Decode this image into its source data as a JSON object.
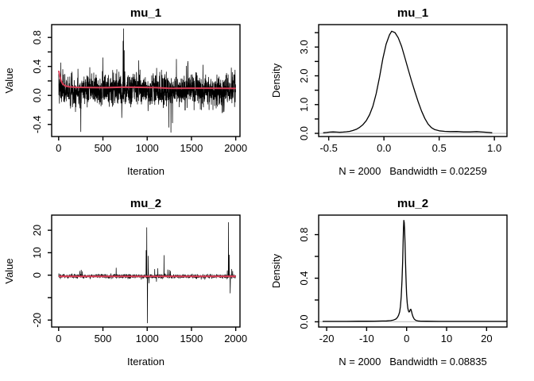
{
  "figure": {
    "background": "#ffffff",
    "colors": {
      "axis": "#000000",
      "text": "#000000",
      "trace": "#000000",
      "smoother": "#d63e56",
      "zero_line": "#c8c8c8"
    }
  },
  "chart_data": [
    {
      "id": "trace-mu1",
      "type": "line",
      "title": "mu_1",
      "xlabel": "Iteration",
      "ylabel": "Value",
      "sublabel": "",
      "usr": {
        "x": [
          -79,
          2048
        ],
        "y": [
          -0.567,
          0.977
        ]
      },
      "xticks": {
        "values": [
          0,
          500,
          1000,
          1500,
          2000
        ],
        "labels": [
          "0",
          "500",
          "1000",
          "1500",
          "2000"
        ]
      },
      "yticks": {
        "values": [
          -0.4,
          -0.2,
          0,
          0.2,
          0.4,
          0.6,
          0.8
        ],
        "labels": [
          "-0.4",
          "",
          "0.0",
          "",
          "0.4",
          "",
          "0.8"
        ]
      },
      "zero_line": false,
      "series": [
        {
          "name": "mcmc-trace-line",
          "color": "#000000",
          "width": 0.75,
          "generate": {
            "seed": 7,
            "n": 2000,
            "mean": 0.075,
            "sd": 0.095,
            "ar": 0.3,
            "clamp": [
              -0.32,
              0.45
            ],
            "spikes": [
              [
                25,
                0.45
              ],
              [
                250,
                -0.5
              ],
              [
                500,
                0.52
              ],
              [
                728,
                0.75
              ],
              [
                733,
                0.92
              ],
              [
                740,
                0.62
              ],
              [
                905,
                0.48
              ],
              [
                1245,
                -0.44
              ],
              [
                1268,
                -0.51
              ],
              [
                1286,
                -0.38
              ],
              [
                1330,
                0.5
              ],
              [
                1460,
                0.47
              ],
              [
                1630,
                0.42
              ],
              [
                1950,
                0.38
              ],
              [
                1992,
                0.35
              ]
            ]
          }
        },
        {
          "name": "smoothed-mean-line",
          "color": "#d63e56",
          "width": 2,
          "points": [
            [
              1,
              0.34
            ],
            [
              12,
              0.28
            ],
            [
              25,
              0.21
            ],
            [
              45,
              0.16
            ],
            [
              75,
              0.13
            ],
            [
              120,
              0.118
            ],
            [
              200,
              0.112
            ],
            [
              350,
              0.11
            ],
            [
              550,
              0.108
            ],
            [
              730,
              0.115
            ],
            [
              900,
              0.112
            ],
            [
              1100,
              0.108
            ],
            [
              1230,
              0.1
            ],
            [
              1320,
              0.098
            ],
            [
              1500,
              0.1
            ],
            [
              1700,
              0.1
            ],
            [
              1850,
              0.098
            ],
            [
              2000,
              0.097
            ]
          ]
        }
      ]
    },
    {
      "id": "density-mu1",
      "type": "line",
      "title": "mu_1",
      "xlabel": "",
      "ylabel": "Density",
      "sublabel": "N = 2000   Bandwidth = 0.02259",
      "usr": {
        "x": [
          -0.591,
          1.114
        ],
        "y": [
          -0.11,
          3.78
        ]
      },
      "xticks": {
        "values": [
          -0.5,
          0,
          0.5,
          1
        ],
        "labels": [
          "-0.5",
          "0.0",
          "0.5",
          "1.0"
        ]
      },
      "yticks": {
        "values": [
          0,
          0.5,
          1,
          1.5,
          2,
          2.5,
          3,
          3.5
        ],
        "labels": [
          "0.0",
          "",
          "1.0",
          "",
          "2.0",
          "",
          "3.0",
          ""
        ]
      },
      "zero_line": true,
      "series": [
        {
          "name": "density-curve",
          "color": "#000000",
          "width": 1.3,
          "points": [
            [
              -0.55,
              0.02
            ],
            [
              -0.52,
              0.03
            ],
            [
              -0.49,
              0.045
            ],
            [
              -0.46,
              0.05
            ],
            [
              -0.43,
              0.045
            ],
            [
              -0.4,
              0.04
            ],
            [
              -0.37,
              0.045
            ],
            [
              -0.34,
              0.055
            ],
            [
              -0.31,
              0.07
            ],
            [
              -0.28,
              0.1
            ],
            [
              -0.25,
              0.14
            ],
            [
              -0.22,
              0.21
            ],
            [
              -0.19,
              0.3
            ],
            [
              -0.16,
              0.44
            ],
            [
              -0.13,
              0.65
            ],
            [
              -0.1,
              0.95
            ],
            [
              -0.07,
              1.38
            ],
            [
              -0.04,
              1.95
            ],
            [
              -0.01,
              2.6
            ],
            [
              0.02,
              3.1
            ],
            [
              0.05,
              3.42
            ],
            [
              0.07,
              3.55
            ],
            [
              0.1,
              3.5
            ],
            [
              0.13,
              3.32
            ],
            [
              0.16,
              3.02
            ],
            [
              0.19,
              2.62
            ],
            [
              0.22,
              2.22
            ],
            [
              0.25,
              1.82
            ],
            [
              0.28,
              1.45
            ],
            [
              0.31,
              1.1
            ],
            [
              0.34,
              0.78
            ],
            [
              0.37,
              0.52
            ],
            [
              0.4,
              0.32
            ],
            [
              0.43,
              0.2
            ],
            [
              0.46,
              0.13
            ],
            [
              0.5,
              0.09
            ],
            [
              0.55,
              0.07
            ],
            [
              0.6,
              0.06
            ],
            [
              0.66,
              0.065
            ],
            [
              0.72,
              0.05
            ],
            [
              0.78,
              0.05
            ],
            [
              0.84,
              0.06
            ],
            [
              0.9,
              0.045
            ],
            [
              0.95,
              0.03
            ],
            [
              0.98,
              0.02
            ]
          ]
        }
      ]
    },
    {
      "id": "trace-mu2",
      "type": "line",
      "title": "mu_2",
      "xlabel": "Iteration",
      "ylabel": "Value",
      "sublabel": "",
      "usr": {
        "x": [
          -79,
          2048
        ],
        "y": [
          -23.1,
          26.75
        ]
      },
      "xticks": {
        "values": [
          0,
          500,
          1000,
          1500,
          2000
        ],
        "labels": [
          "0",
          "500",
          "1000",
          "1500",
          "2000"
        ]
      },
      "yticks": {
        "values": [
          -20,
          -10,
          0,
          10,
          20
        ],
        "labels": [
          "-20",
          "",
          "0",
          "10",
          "20"
        ]
      },
      "zero_line": false,
      "series": [
        {
          "name": "mcmc-trace-line",
          "color": "#000000",
          "width": 0.75,
          "generate": {
            "seed": 13,
            "n": 2000,
            "mean": -0.5,
            "sd": 0.38,
            "ar": 0.3,
            "clamp": [
              -1.9,
              1.0
            ],
            "spikes": [
              [
                240,
                1.8
              ],
              [
                255,
                2.3
              ],
              [
                268,
                1.6
              ],
              [
                650,
                3.2
              ],
              [
                988,
                11
              ],
              [
                995,
                21.2
              ],
              [
                1003,
                -21.3
              ],
              [
                1012,
                8.5
              ],
              [
                1020,
                -3.5
              ],
              [
                1085,
                2.6
              ],
              [
                1105,
                -2.8
              ],
              [
                1120,
                3.0
              ],
              [
                1190,
                8.8
              ],
              [
                1232,
                2.4
              ],
              [
                1250,
                2.2
              ],
              [
                1262,
                1.8
              ],
              [
                1905,
                2.0
              ],
              [
                1918,
                23.5
              ],
              [
                1926,
                9
              ],
              [
                1938,
                -8
              ],
              [
                1952,
                2.6
              ],
              [
                1965,
                1.8
              ]
            ]
          }
        },
        {
          "name": "smoothed-mean-line",
          "color": "#d63e56",
          "width": 2.2,
          "points": [
            [
              1,
              -0.52
            ],
            [
              300,
              -0.55
            ],
            [
              700,
              -0.56
            ],
            [
              1000,
              -0.55
            ],
            [
              1400,
              -0.56
            ],
            [
              1700,
              -0.55
            ],
            [
              2000,
              -0.52
            ]
          ]
        }
      ]
    },
    {
      "id": "density-mu2",
      "type": "line",
      "title": "mu_2",
      "xlabel": "",
      "ylabel": "Density",
      "sublabel": "N = 2000   Bandwidth = 0.08835",
      "usr": {
        "x": [
          -22,
          25.1
        ],
        "y": [
          -0.048,
          0.979
        ]
      },
      "xticks": {
        "values": [
          -20,
          -10,
          0,
          10,
          20
        ],
        "labels": [
          "-20",
          "-10",
          "0",
          "10",
          "20"
        ]
      },
      "yticks": {
        "values": [
          0,
          0.2,
          0.4,
          0.6,
          0.8
        ],
        "labels": [
          "0.0",
          "",
          "0.4",
          "",
          "0.8"
        ]
      },
      "zero_line": true,
      "series": [
        {
          "name": "density-curve",
          "color": "#000000",
          "width": 1.3,
          "points": [
            [
              -21,
              0.004
            ],
            [
              -18,
              0.004
            ],
            [
              -15,
              0.004
            ],
            [
              -12,
              0.005
            ],
            [
              -10,
              0.005
            ],
            [
              -8,
              0.006
            ],
            [
              -6,
              0.007
            ],
            [
              -5,
              0.008
            ],
            [
              -4,
              0.011
            ],
            [
              -3.3,
              0.016
            ],
            [
              -2.7,
              0.025
            ],
            [
              -2.3,
              0.04
            ],
            [
              -2.0,
              0.06
            ],
            [
              -1.75,
              0.09
            ],
            [
              -1.55,
              0.14
            ],
            [
              -1.35,
              0.23
            ],
            [
              -1.15,
              0.38
            ],
            [
              -1.0,
              0.55
            ],
            [
              -0.9,
              0.7
            ],
            [
              -0.8,
              0.85
            ],
            [
              -0.7,
              0.93
            ],
            [
              -0.6,
              0.91
            ],
            [
              -0.5,
              0.84
            ],
            [
              -0.4,
              0.72
            ],
            [
              -0.3,
              0.58
            ],
            [
              -0.2,
              0.45
            ],
            [
              -0.1,
              0.34
            ],
            [
              0.0,
              0.25
            ],
            [
              0.15,
              0.17
            ],
            [
              0.3,
              0.125
            ],
            [
              0.45,
              0.1
            ],
            [
              0.6,
              0.09
            ],
            [
              0.75,
              0.095
            ],
            [
              0.9,
              0.11
            ],
            [
              1.05,
              0.115
            ],
            [
              1.2,
              0.1
            ],
            [
              1.4,
              0.07
            ],
            [
              1.6,
              0.045
            ],
            [
              1.9,
              0.025
            ],
            [
              2.3,
              0.013
            ],
            [
              2.8,
              0.008
            ],
            [
              3.5,
              0.006
            ],
            [
              5,
              0.005
            ],
            [
              8,
              0.004
            ],
            [
              12,
              0.004
            ],
            [
              16,
              0.004
            ],
            [
              20,
              0.004
            ],
            [
              23,
              0.004
            ],
            [
              25,
              0.004
            ]
          ]
        }
      ]
    }
  ]
}
